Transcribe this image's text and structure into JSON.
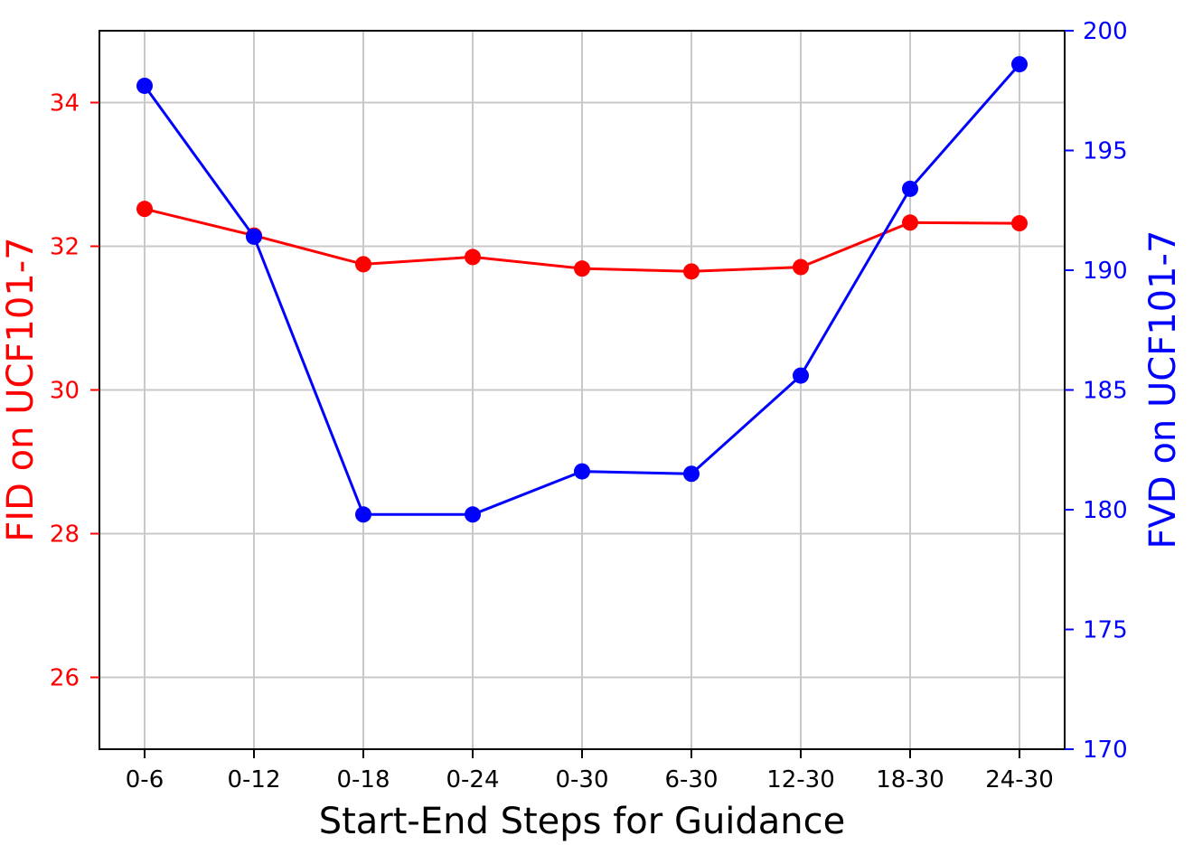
{
  "chart_data": {
    "type": "line",
    "categories": [
      "0-6",
      "0-12",
      "0-18",
      "0-24",
      "0-30",
      "6-30",
      "12-30",
      "18-30",
      "24-30"
    ],
    "xlabel": "Start-End Steps for Guidance",
    "y_left": {
      "label": "FID on UCF101-7",
      "color": "#ff0000",
      "lim": [
        25,
        35
      ],
      "ticks": [
        "26",
        "28",
        "30",
        "32",
        "34"
      ]
    },
    "y_right": {
      "label": "FVD on UCF101-7",
      "color": "#0000ff",
      "lim": [
        170,
        200
      ],
      "ticks": [
        "170",
        "175",
        "180",
        "185",
        "190",
        "195",
        "200"
      ]
    },
    "grid": true,
    "series": [
      {
        "axis": "left",
        "color": "#ff0000",
        "values": [
          32.52,
          32.15,
          31.75,
          31.85,
          31.69,
          31.65,
          31.71,
          32.33,
          32.32
        ]
      },
      {
        "axis": "right",
        "color": "#0000ff",
        "values": [
          197.7,
          191.4,
          179.8,
          179.8,
          181.6,
          181.5,
          185.6,
          193.4,
          198.6
        ]
      }
    ]
  }
}
